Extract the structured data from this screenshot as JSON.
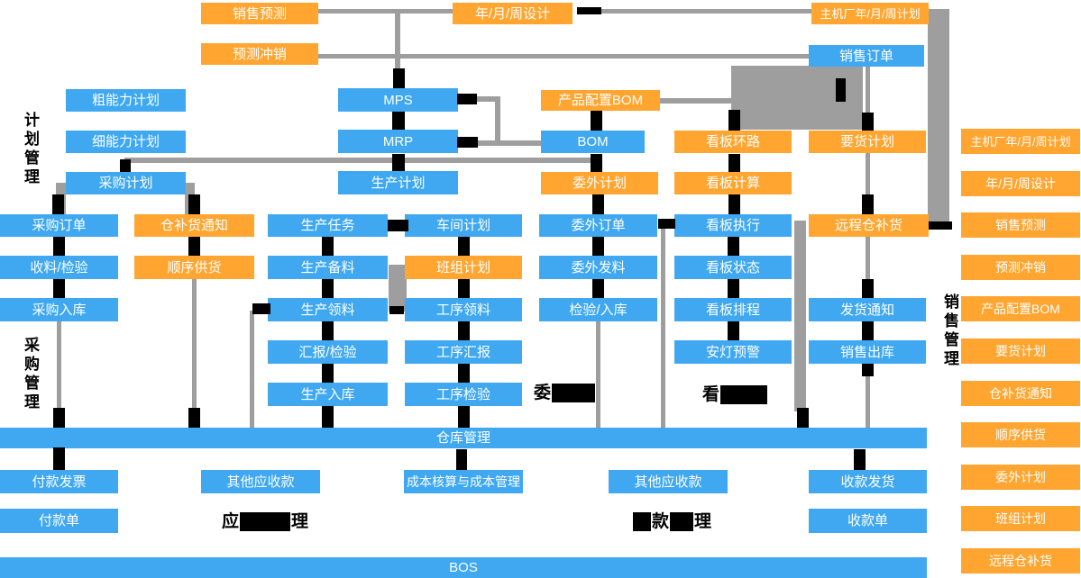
{
  "colors": {
    "orange": "#FFA530",
    "blue": "#3FA8F0",
    "gray": "#9E9E9E",
    "black": "#000000"
  },
  "side_labels": {
    "plan": "计划管理",
    "purchase": "采购管理",
    "sales": "销售管理"
  },
  "modules": {
    "sales_forecast_top": "销售预测",
    "ymw_design_top": "年/月/周设计",
    "oem_ymw_plan_top": "主机厂年/月/周计划",
    "forecast_writeoff_top": "预测冲销",
    "sales_order": "销售订单",
    "rough_capacity": "粗能力计划",
    "mps": "MPS",
    "product_config_bom": "产品配置BOM",
    "fine_capacity": "细能力计划",
    "mrp": "MRP",
    "bom": "BOM",
    "kanban_loop": "看板环路",
    "demand_plan": "要货计划",
    "purchase_plan": "采购计划",
    "production_plan": "生产计划",
    "outsourcing_plan": "委外计划",
    "kanban_calc": "看板计算",
    "purchase_order": "采购订单",
    "warehouse_replenish_notice": "仓补货通知",
    "production_task": "生产任务",
    "workshop_plan": "车间计划",
    "outsourcing_order": "委外订单",
    "kanban_exec": "看板执行",
    "remote_warehouse_replenish": "远程仓补货",
    "receiving_inspection": "收料/检验",
    "sequence_supply": "顺序供货",
    "production_material_prep": "生产备料",
    "team_plan": "班组计划",
    "outsourcing_material_issue": "委外发料",
    "kanban_status": "看板状态",
    "purchase_inbound": "采购入库",
    "production_material_issue": "生产领料",
    "process_material_issue": "工序领料",
    "inspection_inbound": "检验/入库",
    "kanban_schedule": "看板排程",
    "delivery_notice": "发货通知",
    "report_inspection": "汇报/检验",
    "process_report": "工序汇报",
    "andon_warning": "安灯预警",
    "sales_outbound": "销售出库",
    "production_inbound": "生产入库",
    "process_inspection": "工序检验",
    "warehouse_mgmt": "仓库管理",
    "payment_invoice": "付款发票",
    "other_receivables": "其他应收款",
    "cost_accounting": "成本核算与成本管理",
    "receipt_delivery": "收款发货",
    "payment_slip": "付款单",
    "receipt_slip": "收款单",
    "bos": "BOS"
  },
  "right_column": {
    "items": [
      "主机厂年/月/周计划",
      "年/月/周设计",
      "销售预测",
      "预测冲销",
      "产品配置BOM",
      "要货计划",
      "仓补货通知",
      "顺序供货",
      "委外计划",
      "班组计划",
      "远程仓补货"
    ]
  },
  "redacted": {
    "outsourcing_prefix": "委",
    "kanban_prefix": "看",
    "payable_prefix": "应",
    "payable_suffix": "理",
    "receivable_mid": "款",
    "receivable_suffix": "理"
  }
}
